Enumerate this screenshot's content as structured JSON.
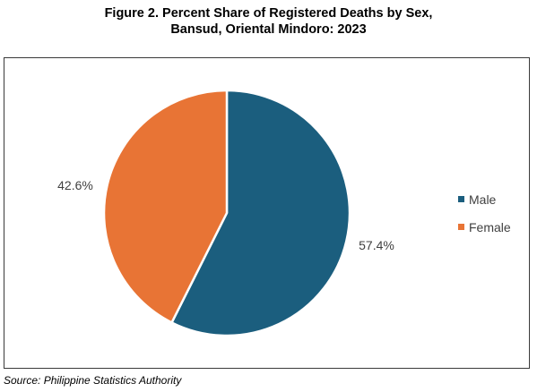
{
  "title_lines": [
    "Figure 2. Percent Share of Registered Deaths by Sex,",
    "Bansud, Oriental Mindoro: 2023"
  ],
  "source": "Source: Philippine Statistics Authority",
  "colors": {
    "male": "#1b5e7e",
    "female": "#e87435",
    "frame": "#3a3a3a"
  },
  "chart_data": {
    "type": "pie",
    "title": "Figure 2. Percent Share of Registered Deaths by Sex, Bansud, Oriental Mindoro: 2023",
    "categories": [
      "Male",
      "Female"
    ],
    "values": [
      57.4,
      42.6
    ],
    "data_labels": [
      "57.4%",
      "42.6%"
    ],
    "legend": {
      "placement": "right",
      "entries": [
        "Male",
        "Female"
      ]
    },
    "start_angle_deg": 0,
    "direction": "clockwise"
  }
}
